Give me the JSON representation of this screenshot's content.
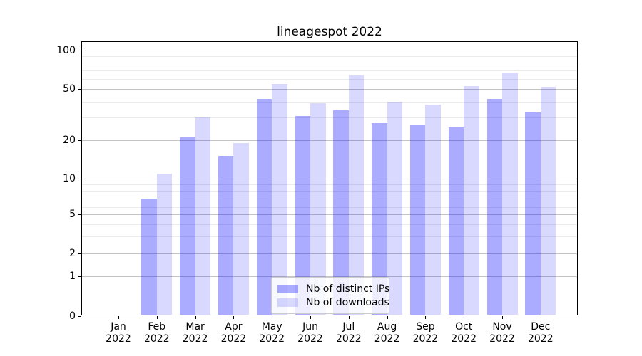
{
  "chart_data": {
    "type": "bar",
    "title": "lineagespot 2022",
    "categories": [
      "Jan 2022",
      "Feb 2022",
      "Mar 2022",
      "Apr 2022",
      "May 2022",
      "Jun 2022",
      "Jul 2022",
      "Aug 2022",
      "Sep 2022",
      "Oct 2022",
      "Nov 2022",
      "Dec 2022"
    ],
    "series": [
      {
        "name": "Nb of distinct IPs",
        "color": "rgba(0,0,255,0.33)",
        "values": [
          0,
          7,
          21,
          15,
          42,
          31,
          34,
          27,
          26,
          25,
          42,
          33
        ]
      },
      {
        "name": "Nb of downloads",
        "color": "rgba(0,0,255,0.15)",
        "values": [
          0,
          11,
          30,
          19,
          55,
          39,
          64,
          40,
          38,
          53,
          67,
          52
        ]
      }
    ],
    "xlabel": "",
    "ylabel": "",
    "yscale": "symlog",
    "ylim": [
      0,
      120
    ],
    "yticks": [
      0,
      1,
      2,
      5,
      10,
      20,
      50,
      100
    ],
    "yticks_minor": [
      3,
      4,
      6,
      7,
      8,
      9,
      30,
      40,
      60,
      70,
      80,
      90
    ],
    "grid": true,
    "legend_position": "lower center",
    "colors": {
      "grid_major": "#c4c4c4",
      "grid_minor": "#ebebeb",
      "axis": "#000000",
      "bar_distinct_ips_rendered": "#aaaaff",
      "bar_downloads_rendered": "#d9d9ff"
    }
  }
}
